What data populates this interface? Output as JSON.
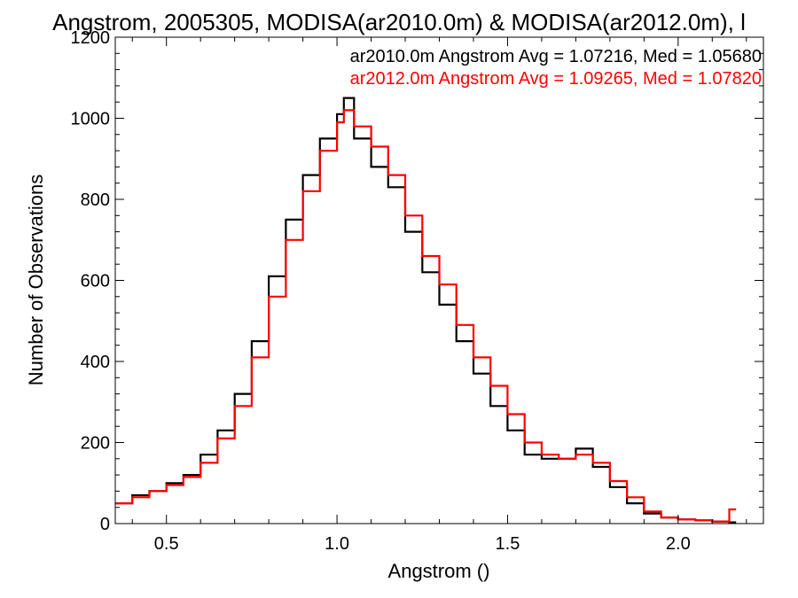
{
  "chart_data": {
    "type": "line",
    "step": true,
    "title": "Angstrom, 2005305, MODISA(ar2010.0m) & MODISA(ar2012.0m), l",
    "xlabel": "Angstrom ()",
    "ylabel": "Number of Observations",
    "xlim": [
      0.35,
      2.25
    ],
    "ylim": [
      0,
      1200
    ],
    "xticks": [
      0.5,
      1.0,
      1.5,
      2.0
    ],
    "xtick_labels": [
      "0.5",
      "1.0",
      "1.5",
      "2.0"
    ],
    "yticks": [
      0,
      200,
      400,
      600,
      800,
      1000,
      1200
    ],
    "ytick_labels": [
      "0",
      "200",
      "400",
      "600",
      "800",
      "1000",
      "1200"
    ],
    "grid": false,
    "legend_position": "top-right",
    "series": [
      {
        "name": "ar2010.0m Angstrom Avg = 1.07216, Med = 1.05680",
        "color": "#000000",
        "x": [
          0.35,
          0.4,
          0.45,
          0.5,
          0.55,
          0.6,
          0.65,
          0.7,
          0.75,
          0.8,
          0.85,
          0.9,
          0.95,
          1.0,
          1.02,
          1.05,
          1.1,
          1.15,
          1.2,
          1.25,
          1.3,
          1.35,
          1.4,
          1.45,
          1.5,
          1.55,
          1.6,
          1.65,
          1.7,
          1.75,
          1.8,
          1.85,
          1.9,
          1.95,
          2.0,
          2.05,
          2.1,
          2.15
        ],
        "values": [
          50,
          70,
          80,
          100,
          120,
          170,
          230,
          320,
          450,
          610,
          750,
          860,
          950,
          1010,
          1050,
          950,
          880,
          830,
          720,
          620,
          540,
          450,
          370,
          290,
          230,
          170,
          160,
          160,
          185,
          140,
          90,
          50,
          25,
          15,
          10,
          8,
          5,
          3
        ]
      },
      {
        "name": "ar2012.0m Angstrom Avg = 1.09265, Med = 1.07820",
        "color": "#ff0000",
        "x": [
          0.35,
          0.4,
          0.45,
          0.5,
          0.55,
          0.6,
          0.65,
          0.7,
          0.75,
          0.8,
          0.85,
          0.9,
          0.95,
          1.0,
          1.02,
          1.05,
          1.1,
          1.15,
          1.2,
          1.25,
          1.3,
          1.35,
          1.4,
          1.45,
          1.5,
          1.55,
          1.6,
          1.65,
          1.7,
          1.75,
          1.8,
          1.85,
          1.9,
          1.95,
          2.0,
          2.05,
          2.1,
          2.15
        ],
        "values": [
          50,
          65,
          80,
          95,
          115,
          150,
          210,
          290,
          410,
          560,
          700,
          820,
          920,
          990,
          1020,
          980,
          930,
          860,
          760,
          660,
          590,
          490,
          410,
          340,
          270,
          200,
          170,
          160,
          170,
          150,
          105,
          65,
          30,
          15,
          10,
          8,
          5,
          35
        ]
      }
    ]
  }
}
